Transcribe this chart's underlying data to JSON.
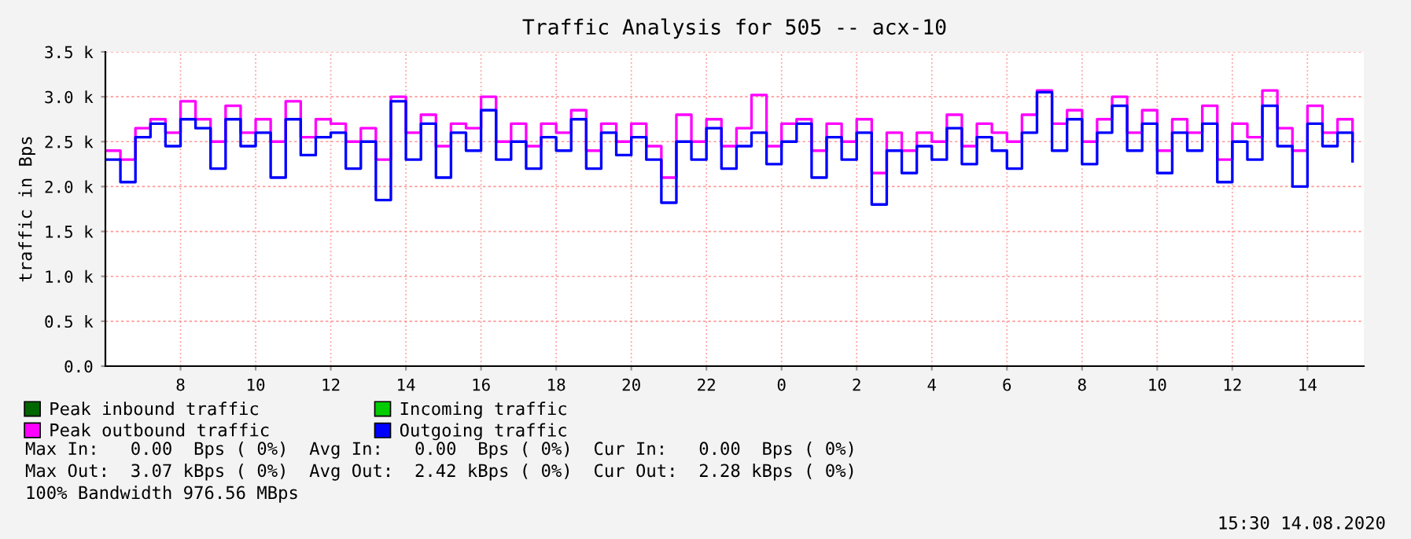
{
  "chart_data": {
    "type": "step",
    "title": "Traffic Analysis for 505 -- acx-10",
    "ylabel": "traffic in Bps",
    "x": [
      "2020-08-13T06:00",
      "2020-08-13T06:24",
      "2020-08-13T06:48",
      "2020-08-13T07:12",
      "2020-08-13T07:36",
      "2020-08-13T08:00",
      "2020-08-13T08:24",
      "2020-08-13T08:48",
      "2020-08-13T09:12",
      "2020-08-13T09:36",
      "2020-08-13T10:00",
      "2020-08-13T10:24",
      "2020-08-13T10:48",
      "2020-08-13T11:12",
      "2020-08-13T11:36",
      "2020-08-13T12:00",
      "2020-08-13T12:24",
      "2020-08-13T12:48",
      "2020-08-13T13:12",
      "2020-08-13T13:36",
      "2020-08-13T14:00",
      "2020-08-13T14:24",
      "2020-08-13T14:48",
      "2020-08-13T15:12",
      "2020-08-13T15:36",
      "2020-08-13T16:00",
      "2020-08-13T16:24",
      "2020-08-13T16:48",
      "2020-08-13T17:12",
      "2020-08-13T17:36",
      "2020-08-13T18:00",
      "2020-08-13T18:24",
      "2020-08-13T18:48",
      "2020-08-13T19:12",
      "2020-08-13T19:36",
      "2020-08-13T20:00",
      "2020-08-13T20:24",
      "2020-08-13T20:48",
      "2020-08-13T21:12",
      "2020-08-13T21:36",
      "2020-08-13T22:00",
      "2020-08-13T22:24",
      "2020-08-13T22:48",
      "2020-08-13T23:12",
      "2020-08-13T23:36",
      "2020-08-14T00:00",
      "2020-08-14T00:24",
      "2020-08-14T00:48",
      "2020-08-14T01:12",
      "2020-08-14T01:36",
      "2020-08-14T02:00",
      "2020-08-14T02:24",
      "2020-08-14T02:48",
      "2020-08-14T03:12",
      "2020-08-14T03:36",
      "2020-08-14T04:00",
      "2020-08-14T04:24",
      "2020-08-14T04:48",
      "2020-08-14T05:12",
      "2020-08-14T05:36",
      "2020-08-14T06:00",
      "2020-08-14T06:24",
      "2020-08-14T06:48",
      "2020-08-14T07:12",
      "2020-08-14T07:36",
      "2020-08-14T08:00",
      "2020-08-14T08:24",
      "2020-08-14T08:48",
      "2020-08-14T09:12",
      "2020-08-14T09:36",
      "2020-08-14T10:00",
      "2020-08-14T10:24",
      "2020-08-14T10:48",
      "2020-08-14T11:12",
      "2020-08-14T11:36",
      "2020-08-14T12:00",
      "2020-08-14T12:24",
      "2020-08-14T12:48",
      "2020-08-14T13:12",
      "2020-08-14T13:36",
      "2020-08-14T14:00",
      "2020-08-14T14:24",
      "2020-08-14T14:48",
      "2020-08-14T15:12"
    ],
    "series": [
      {
        "name": "Peak inbound traffic",
        "color": "#006600",
        "values": [
          null,
          null,
          null,
          null,
          null,
          null,
          null,
          null,
          null,
          null,
          null,
          null,
          null,
          null,
          null,
          null,
          null,
          null,
          null,
          null,
          null,
          null,
          null,
          null,
          null,
          null,
          null,
          null,
          null,
          null,
          null,
          null,
          null,
          null,
          null,
          null,
          null,
          null,
          null,
          null,
          null,
          null,
          null,
          null,
          null,
          null,
          null,
          null,
          null,
          null,
          null,
          null,
          null,
          null,
          null,
          null,
          null,
          null,
          null,
          null,
          null,
          null,
          null,
          null,
          null,
          null,
          null,
          null,
          null,
          null,
          null,
          null,
          null,
          null,
          null,
          null,
          null,
          null,
          null,
          null,
          null,
          null,
          null,
          null
        ]
      },
      {
        "name": "Peak outbound traffic",
        "color": "#ff00ff",
        "values": [
          2400,
          2300,
          2650,
          2750,
          2600,
          2950,
          2750,
          2500,
          2900,
          2600,
          2750,
          2500,
          2950,
          2550,
          2750,
          2700,
          2500,
          2650,
          2300,
          3000,
          2600,
          2800,
          2450,
          2700,
          2650,
          3000,
          2500,
          2700,
          2450,
          2700,
          2600,
          2850,
          2400,
          2700,
          2500,
          2700,
          2450,
          2100,
          2800,
          2500,
          2750,
          2450,
          2650,
          3020,
          2450,
          2700,
          2750,
          2400,
          2700,
          2500,
          2750,
          2150,
          2600,
          2400,
          2600,
          2500,
          2800,
          2450,
          2700,
          2600,
          2500,
          2800,
          3070,
          2700,
          2850,
          2500,
          2750,
          3000,
          2600,
          2850,
          2400,
          2750,
          2600,
          2900,
          2300,
          2700,
          2550,
          3070,
          2650,
          2400,
          2900,
          2600,
          2750,
          2500
        ]
      },
      {
        "name": "Incoming traffic",
        "color": "#00cc00",
        "values": [
          null,
          null,
          null,
          null,
          null,
          null,
          null,
          null,
          null,
          null,
          null,
          null,
          null,
          null,
          null,
          null,
          null,
          null,
          null,
          null,
          null,
          null,
          null,
          null,
          null,
          null,
          null,
          null,
          null,
          null,
          null,
          null,
          null,
          null,
          null,
          null,
          null,
          null,
          null,
          null,
          null,
          null,
          null,
          null,
          null,
          null,
          null,
          null,
          null,
          null,
          null,
          null,
          null,
          null,
          null,
          null,
          null,
          null,
          null,
          null,
          null,
          null,
          null,
          null,
          null,
          null,
          null,
          null,
          null,
          null,
          null,
          null,
          null,
          null,
          null,
          null,
          null,
          null,
          null,
          null,
          null,
          null,
          null,
          null
        ]
      },
      {
        "name": "Outgoing traffic",
        "color": "#0000ff",
        "values": [
          2300,
          2050,
          2550,
          2700,
          2450,
          2750,
          2650,
          2200,
          2750,
          2450,
          2600,
          2100,
          2750,
          2350,
          2550,
          2600,
          2200,
          2500,
          1850,
          2950,
          2300,
          2700,
          2100,
          2600,
          2400,
          2850,
          2300,
          2500,
          2200,
          2550,
          2400,
          2750,
          2200,
          2600,
          2350,
          2550,
          2300,
          1820,
          2500,
          2300,
          2650,
          2200,
          2450,
          2600,
          2250,
          2500,
          2700,
          2100,
          2550,
          2300,
          2600,
          1800,
          2400,
          2150,
          2450,
          2300,
          2650,
          2250,
          2550,
          2400,
          2200,
          2600,
          3050,
          2400,
          2750,
          2250,
          2600,
          2900,
          2400,
          2700,
          2150,
          2600,
          2400,
          2700,
          2050,
          2500,
          2300,
          2900,
          2450,
          2000,
          2700,
          2450,
          2600,
          2280
        ]
      }
    ],
    "xlim": [
      "2020-08-13T06:00",
      "2020-08-14T15:30"
    ],
    "xticks": [
      {
        "value": "2020-08-13T08:00",
        "label": "8"
      },
      {
        "value": "2020-08-13T10:00",
        "label": "10"
      },
      {
        "value": "2020-08-13T12:00",
        "label": "12"
      },
      {
        "value": "2020-08-13T14:00",
        "label": "14"
      },
      {
        "value": "2020-08-13T16:00",
        "label": "16"
      },
      {
        "value": "2020-08-13T18:00",
        "label": "18"
      },
      {
        "value": "2020-08-13T20:00",
        "label": "20"
      },
      {
        "value": "2020-08-13T22:00",
        "label": "22"
      },
      {
        "value": "2020-08-14T00:00",
        "label": "0"
      },
      {
        "value": "2020-08-14T02:00",
        "label": "2"
      },
      {
        "value": "2020-08-14T04:00",
        "label": "4"
      },
      {
        "value": "2020-08-14T06:00",
        "label": "6"
      },
      {
        "value": "2020-08-14T08:00",
        "label": "8"
      },
      {
        "value": "2020-08-14T10:00",
        "label": "10"
      },
      {
        "value": "2020-08-14T12:00",
        "label": "12"
      },
      {
        "value": "2020-08-14T14:00",
        "label": "14"
      }
    ],
    "ylim": [
      0,
      3500
    ],
    "yticks": [
      {
        "value": 0,
        "label": "0.0"
      },
      {
        "value": 500,
        "label": "0.5 k"
      },
      {
        "value": 1000,
        "label": "1.0 k"
      },
      {
        "value": 1500,
        "label": "1.5 k"
      },
      {
        "value": 2000,
        "label": "2.0 k"
      },
      {
        "value": 2500,
        "label": "2.5 k"
      },
      {
        "value": 3000,
        "label": "3.0 k"
      },
      {
        "value": 3500,
        "label": "3.5 k"
      }
    ],
    "grid": true,
    "legend": "bottom",
    "marker": "none",
    "line_style": "solid",
    "annotations": [
      "Max In:   0.00  Bps ( 0%)  Avg In:   0.00  Bps ( 0%)  Cur In:   0.00  Bps ( 0%)",
      "Max Out:  3.07 kBps ( 0%)  Avg Out:  2.42 kBps ( 0%)  Cur Out:  2.28 kBps ( 0%)",
      "100% Bandwidth 976.56 MBps",
      "15:30 14.08.2020"
    ]
  }
}
